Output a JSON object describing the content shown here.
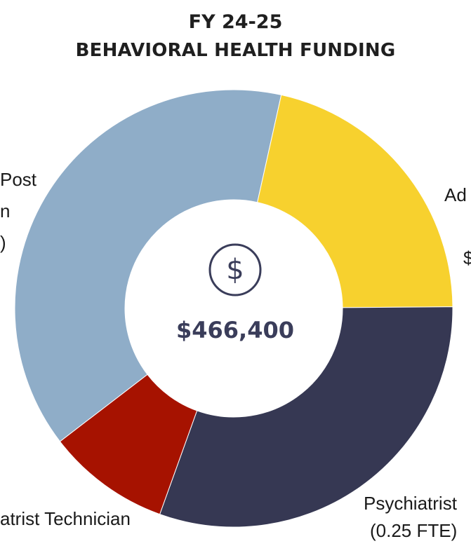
{
  "title": {
    "line1": "FY 24-25",
    "line2": "BEHAVIORAL HEALTH FUNDING"
  },
  "center": {
    "icon": "dollar-icon",
    "total": "$466,400"
  },
  "labels": {
    "top_left_1": "Post",
    "top_left_2": "n",
    "top_left_3": ")",
    "right_1": "Ad",
    "right_2": "$",
    "bottom_left": "atrist Technician",
    "bottom_right_1": "Psychiatrist",
    "bottom_right_2": "(0.25 FTE)"
  },
  "chart_data": {
    "type": "donut",
    "title": "FY 24-25 BEHAVIORAL HEALTH FUNDING",
    "total": "$466,400",
    "categories": [
      "Ad…",
      "Psychiatrist (0.25 FTE)",
      "…atrist Technician",
      "…Post …n …)"
    ],
    "values": [
      38.9,
      21.4,
      30.6,
      9.1
    ],
    "colors": [
      "#8fadc8",
      "#f7d12e",
      "#363853",
      "#a61200"
    ]
  }
}
